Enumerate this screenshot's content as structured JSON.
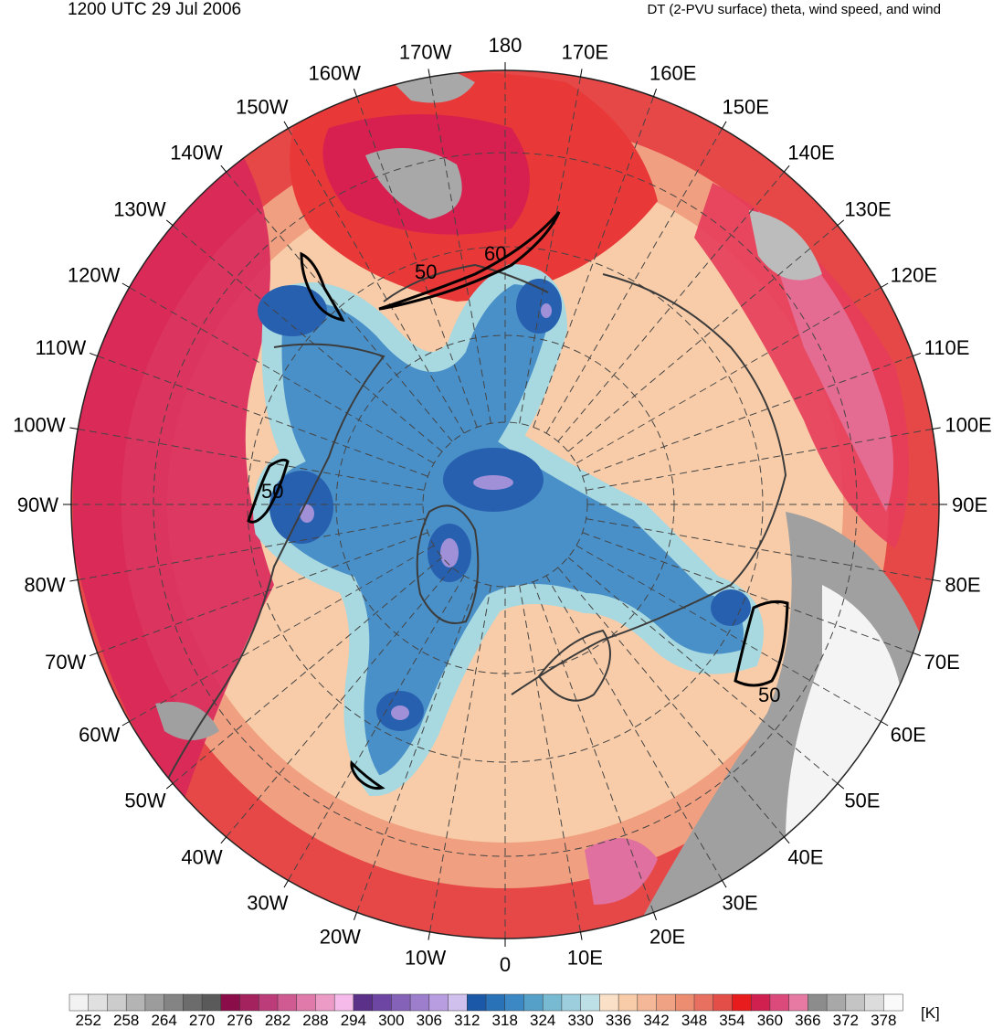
{
  "header": {
    "datetime": "1200 UTC 29 Jul 2006",
    "product": "DT (2-PVU surface) theta, wind speed, and wind"
  },
  "map": {
    "projection": "north-polar-stereographic",
    "longitude_labels": [
      "180",
      "170E",
      "160E",
      "150E",
      "140E",
      "130E",
      "120E",
      "110E",
      "100E",
      "90E",
      "80E",
      "70E",
      "60E",
      "50E",
      "40E",
      "30E",
      "20E",
      "10E",
      "0",
      "10W",
      "20W",
      "30W",
      "40W",
      "50W",
      "60W",
      "70W",
      "80W",
      "90W",
      "100W",
      "110W",
      "120W",
      "130W",
      "140W",
      "150W",
      "160W",
      "170W"
    ],
    "wind_speed_contour_labels": [
      "50",
      "60",
      "50",
      "50"
    ],
    "colors": {
      "cold_core": "#a090d8",
      "blue_dark": "#2860b0",
      "blue_mid": "#4a90c8",
      "blue_light": "#a8d8e0",
      "peach": "#f8cca8",
      "salmon": "#f0a080",
      "red": "#e83830",
      "crimson": "#d82050",
      "pink": "#e07090",
      "gray": "#a0a0a0",
      "white": "#f4f4f4",
      "coast": "#3c3c3c"
    }
  },
  "colorbar": {
    "unit": "[K]",
    "tick_labels": [
      "252",
      "258",
      "264",
      "270",
      "276",
      "282",
      "288",
      "294",
      "300",
      "306",
      "312",
      "318",
      "324",
      "330",
      "336",
      "342",
      "348",
      "354",
      "360",
      "366",
      "372",
      "378"
    ],
    "colors": [
      "#f2f2f2",
      "#e0e0e0",
      "#cccccc",
      "#b4b4b4",
      "#9c9c9c",
      "#848484",
      "#6c6c6c",
      "#5a5a5a",
      "#8a0c48",
      "#a4225e",
      "#bc3c7a",
      "#d05a92",
      "#e07aaa",
      "#ec9ac6",
      "#f6baea",
      "#5a3088",
      "#6c46a2",
      "#8462b8",
      "#9c7ecc",
      "#b89ee0",
      "#cfc0ee",
      "#1c58a8",
      "#2a72b8",
      "#3c88c4",
      "#54a0c8",
      "#78bad2",
      "#9ccede",
      "#bce0e6",
      "#fbe0c8",
      "#f8cca8",
      "#f4b898",
      "#f0a284",
      "#ec8c70",
      "#e87060",
      "#e44e48",
      "#e81c1c",
      "#d02050",
      "#dc4a7c",
      "#e67aa2",
      "#8c8c8c",
      "#a8a8a8",
      "#c4c4c4",
      "#dcdcdc",
      "#fafafa"
    ]
  }
}
